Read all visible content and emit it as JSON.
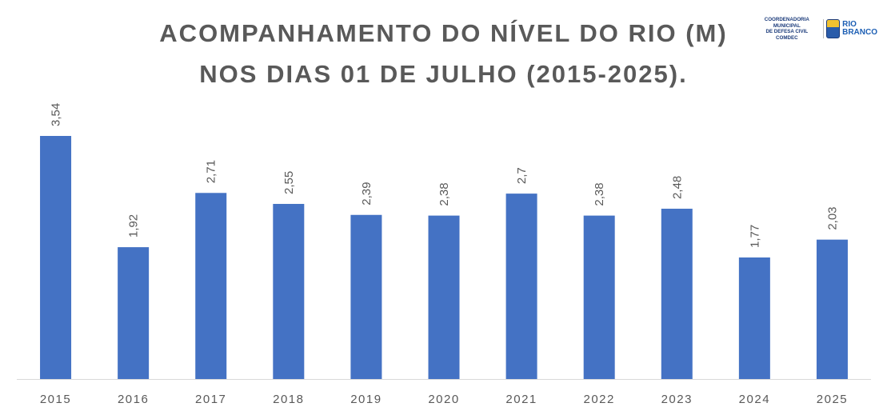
{
  "logo": {
    "comdec_lines": [
      "COORDENADORIA MUNICIPAL",
      "DE DEFESA CIVIL",
      "COMDEC"
    ],
    "city_name_lines": [
      "RIO",
      "BRANCO"
    ]
  },
  "chart_data": {
    "type": "bar",
    "title_lines": [
      "ACOMPANHAMENTO DO NÍVEL DO RIO (M)",
      "NOS DIAS 01 DE JULHO (2015-2025)."
    ],
    "xlabel": "",
    "ylabel": "",
    "categories": [
      "2015",
      "2016",
      "2017",
      "2018",
      "2019",
      "2020",
      "2021",
      "2022",
      "2023",
      "2024",
      "2025"
    ],
    "values": [
      3.54,
      1.92,
      2.71,
      2.55,
      2.39,
      2.38,
      2.7,
      2.38,
      2.48,
      1.77,
      2.03
    ],
    "value_labels": [
      "3,54",
      "1,92",
      "2,71",
      "2,55",
      "2,39",
      "2,38",
      "2,7",
      "2,38",
      "2,48",
      "1,77",
      "2,03"
    ],
    "ylim": [
      0,
      3.54
    ],
    "bar_color": "#4472C4",
    "grid": false,
    "legend": "none"
  }
}
